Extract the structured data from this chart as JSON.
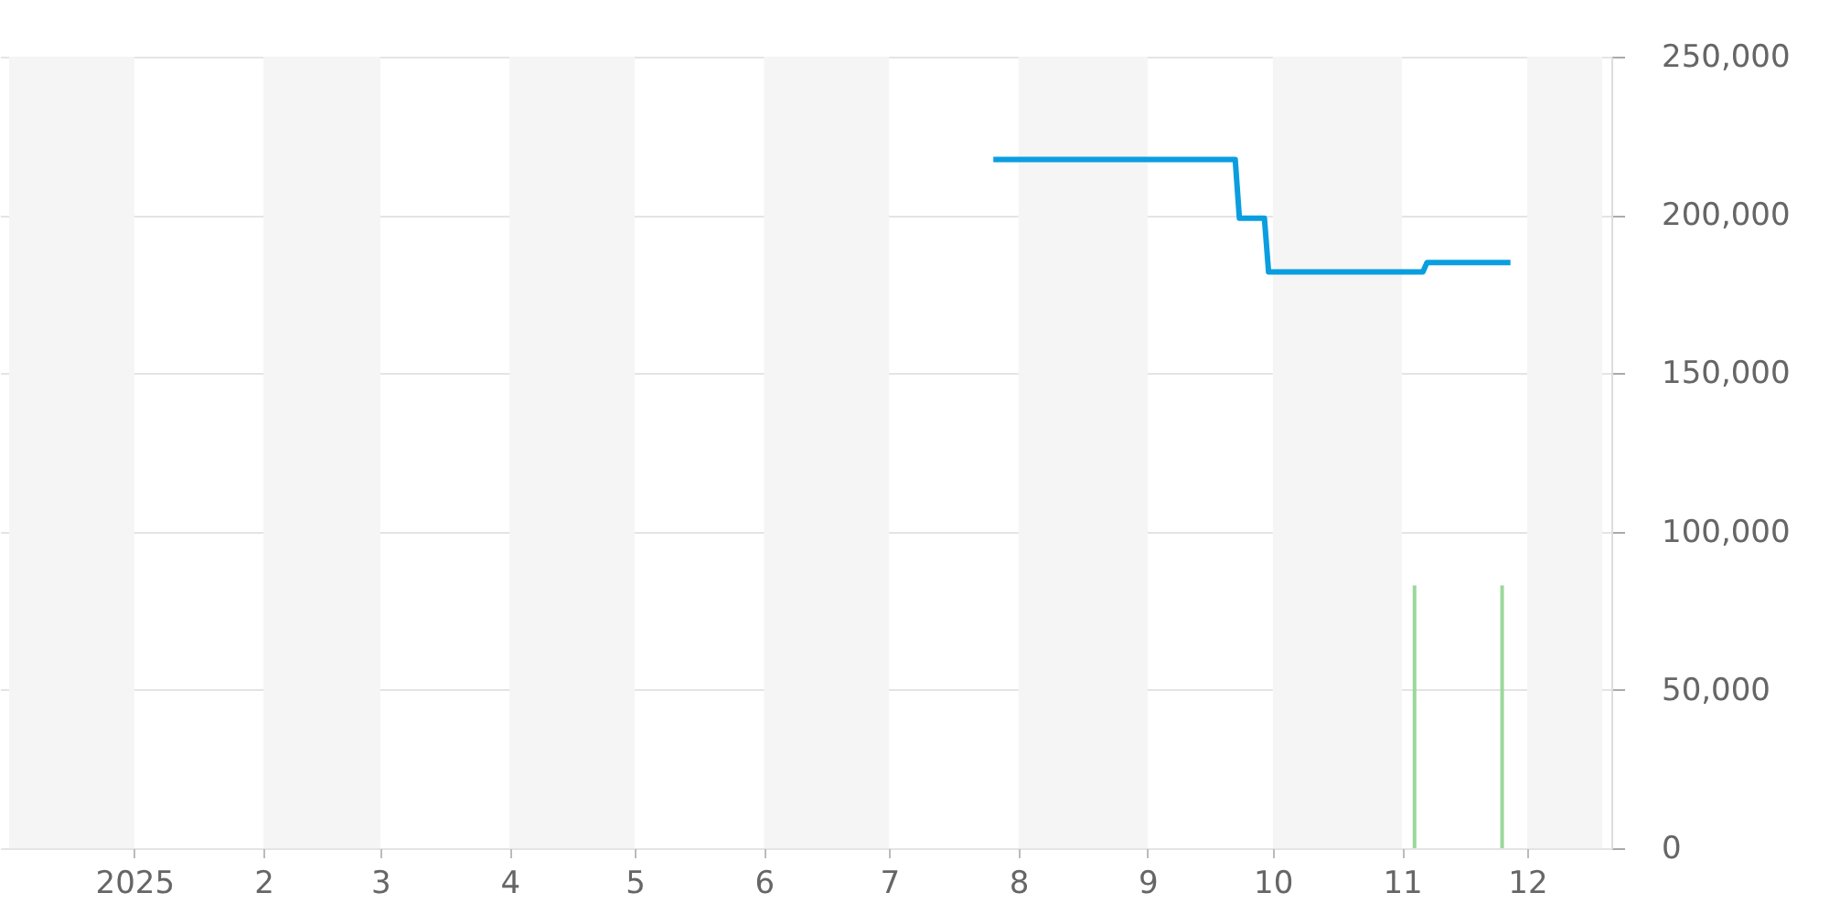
{
  "chart_data": {
    "type": "line",
    "series": [
      {
        "color": "#0a9ee0",
        "x": [
          "2025-07-26",
          "2025-09-22",
          "2025-09-23",
          "2025-09-29",
          "2025-09-30",
          "2025-11-06",
          "2025-11-07",
          "2025-11-27"
        ],
        "values": [
          217500,
          217500,
          199000,
          199000,
          182000,
          182000,
          185000,
          185000
        ]
      },
      {
        "type": "bar",
        "color": "#9ad89a",
        "x": [
          "2025-11-04",
          "2025-11-25"
        ],
        "values": [
          83000,
          83000
        ]
      }
    ],
    "xlim": [
      "2024-12-02",
      "2025-12-19"
    ],
    "xticks": [
      {
        "value": "2025-01-01",
        "label": "2025"
      },
      {
        "value": "2025-02-01",
        "label": "2"
      },
      {
        "value": "2025-03-01",
        "label": "3"
      },
      {
        "value": "2025-04-01",
        "label": "4"
      },
      {
        "value": "2025-05-01",
        "label": "5"
      },
      {
        "value": "2025-06-01",
        "label": "6"
      },
      {
        "value": "2025-07-01",
        "label": "7"
      },
      {
        "value": "2025-08-01",
        "label": "8"
      },
      {
        "value": "2025-09-01",
        "label": "9"
      },
      {
        "value": "2025-10-01",
        "label": "10"
      },
      {
        "value": "2025-11-01",
        "label": "11"
      },
      {
        "value": "2025-12-01",
        "label": "12"
      }
    ],
    "ylim": [
      0,
      250000
    ],
    "yticks": [
      0,
      {
        "value": 50000,
        "label": "50,000"
      },
      {
        "value": 100000,
        "label": "100,000"
      },
      {
        "value": 150000,
        "label": "150,000"
      },
      {
        "value": 200000,
        "label": "200,000"
      },
      {
        "value": 250000,
        "label": "250,000"
      }
    ],
    "grid": "y",
    "bands": [
      {
        "axis": "x",
        "from": "2024-12-02",
        "to": "2025-01-01",
        "color": "#f5f5f5"
      },
      {
        "axis": "x",
        "from": "2025-02-01",
        "to": "2025-03-01",
        "color": "#f5f5f5"
      },
      {
        "axis": "x",
        "from": "2025-04-01",
        "to": "2025-05-01",
        "color": "#f5f5f5"
      },
      {
        "axis": "x",
        "from": "2025-06-01",
        "to": "2025-07-01",
        "color": "#f5f5f5"
      },
      {
        "axis": "x",
        "from": "2025-08-01",
        "to": "2025-09-01",
        "color": "#f5f5f5"
      },
      {
        "axis": "x",
        "from": "2025-10-01",
        "to": "2025-11-01",
        "color": "#f5f5f5"
      },
      {
        "axis": "x",
        "from": "2025-12-01",
        "to": "2025-12-19",
        "color": "#f5f5f5"
      }
    ]
  }
}
